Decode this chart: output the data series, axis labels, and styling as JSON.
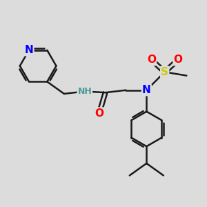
{
  "background_color": "#dcdcdc",
  "bond_color": "#1a1a1a",
  "bond_width": 1.8,
  "atom_colors": {
    "N": "#0000ff",
    "O": "#ff0000",
    "S": "#cccc00",
    "C": "#1a1a1a",
    "H": "#4a9a9a",
    "NH": "#4a9a9a"
  },
  "font_size": 9
}
